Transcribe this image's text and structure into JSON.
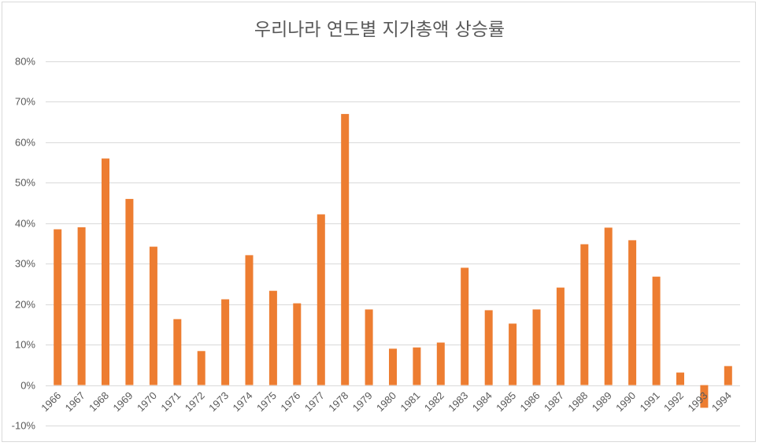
{
  "chart_data": {
    "type": "bar",
    "title": "우리나라 연도별 지가총액 상승률",
    "xlabel": "",
    "ylabel": "",
    "ylim": [
      -10,
      80
    ],
    "ytick_step": 10,
    "ytick_suffix": "%",
    "grid": true,
    "legend": "none",
    "bar_color": "#ed7d31",
    "grid_color": "#d9d9d9",
    "categories": [
      "1966",
      "1967",
      "1968",
      "1969",
      "1970",
      "1971",
      "1972",
      "1973",
      "1974",
      "1975",
      "1976",
      "1977",
      "1978",
      "1979",
      "1980",
      "1981",
      "1982",
      "1983",
      "1984",
      "1985",
      "1986",
      "1987",
      "1988",
      "1989",
      "1990",
      "1991",
      "1992",
      "1993",
      "1994"
    ],
    "values": [
      38.5,
      39,
      56,
      46,
      34.2,
      16.3,
      8.4,
      21.2,
      32.1,
      23.3,
      20.2,
      42.2,
      67,
      18.7,
      9,
      9.3,
      10.5,
      29,
      18.5,
      15.2,
      18.7,
      24.1,
      34.8,
      38.9,
      35.8,
      26.8,
      3.1,
      -5.6,
      4.7
    ]
  }
}
